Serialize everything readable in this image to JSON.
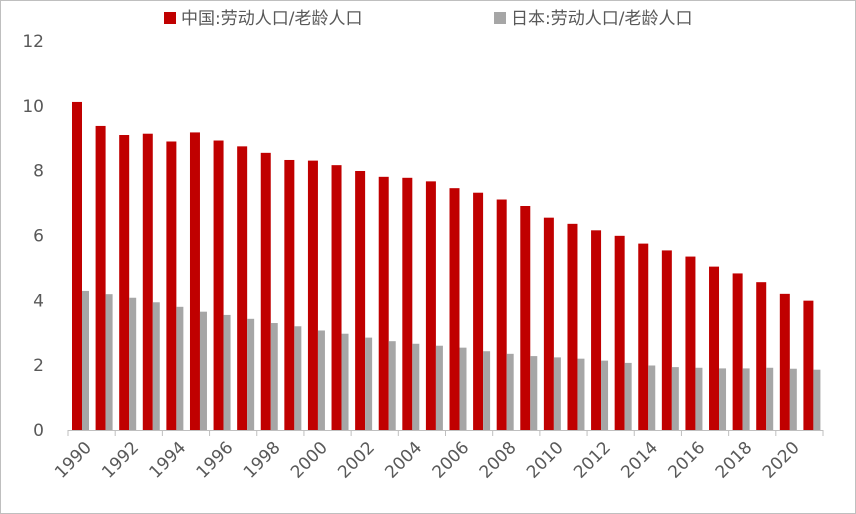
{
  "chart_data": {
    "type": "bar",
    "title": "",
    "xlabel": "",
    "ylabel": "",
    "ylim": [
      0,
      12
    ],
    "yticks": [
      0,
      2,
      4,
      6,
      8,
      10,
      12
    ],
    "grid": false,
    "legend_position": "top",
    "categories": [
      "1990",
      "1991",
      "1992",
      "1993",
      "1994",
      "1995",
      "1996",
      "1997",
      "1998",
      "1999",
      "2000",
      "2001",
      "2002",
      "2003",
      "2004",
      "2005",
      "2006",
      "2007",
      "2008",
      "2009",
      "2010",
      "2011",
      "2012",
      "2013",
      "2014",
      "2015",
      "2016",
      "2017",
      "2018",
      "2019",
      "2020",
      "2021"
    ],
    "x_tick_labels": [
      "1990",
      "1992",
      "1994",
      "1996",
      "1998",
      "2000",
      "2002",
      "2004",
      "2006",
      "2008",
      "2010",
      "2012",
      "2014",
      "2016",
      "2018",
      "2020"
    ],
    "series": [
      {
        "name": "中国:劳动人口/老龄人口",
        "color": "#C00000",
        "values": [
          10.12,
          9.38,
          9.1,
          9.14,
          8.9,
          9.18,
          8.93,
          8.75,
          8.55,
          8.33,
          8.31,
          8.17,
          7.99,
          7.81,
          7.78,
          7.67,
          7.46,
          7.32,
          7.11,
          6.91,
          6.55,
          6.36,
          6.16,
          5.99,
          5.75,
          5.54,
          5.35,
          5.04,
          4.83,
          4.56,
          4.2,
          3.99
        ]
      },
      {
        "name": "日本:劳动人口/老龄人口",
        "color": "#A6A6A6",
        "values": [
          4.29,
          4.19,
          4.08,
          3.94,
          3.8,
          3.65,
          3.55,
          3.43,
          3.3,
          3.2,
          3.07,
          2.97,
          2.85,
          2.74,
          2.66,
          2.6,
          2.54,
          2.43,
          2.35,
          2.28,
          2.24,
          2.2,
          2.14,
          2.07,
          1.99,
          1.94,
          1.92,
          1.9,
          1.9,
          1.92,
          1.89,
          1.86
        ]
      }
    ]
  }
}
